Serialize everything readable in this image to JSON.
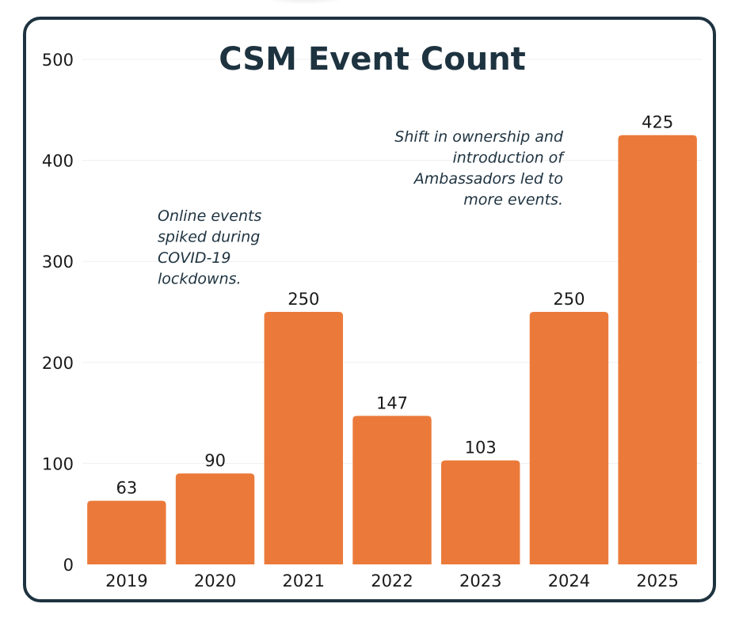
{
  "chart_data": {
    "type": "bar",
    "title": "CSM Event Count",
    "xlabel": "",
    "ylabel": "",
    "categories": [
      "2019",
      "2020",
      "2021",
      "2022",
      "2023",
      "2024",
      "2025"
    ],
    "values": [
      63,
      90,
      250,
      147,
      103,
      250,
      425
    ],
    "ylim": [
      0,
      500
    ],
    "yticks": [
      0,
      100,
      200,
      300,
      400,
      500
    ],
    "grid": true,
    "bar_color": "#eb7a3a",
    "annotations": [
      {
        "lines": [
          "Online events",
          "spiked during",
          "COVID-19",
          "lockdowns."
        ],
        "near_category": "2020"
      },
      {
        "lines": [
          "Shift in ownership and",
          "introduction of",
          "Ambassadors led to",
          "more events."
        ],
        "near_category": "2024"
      }
    ]
  },
  "colors": {
    "frame": "#1e3340",
    "bar": "#eb7a3a",
    "title": "#1e3340"
  }
}
